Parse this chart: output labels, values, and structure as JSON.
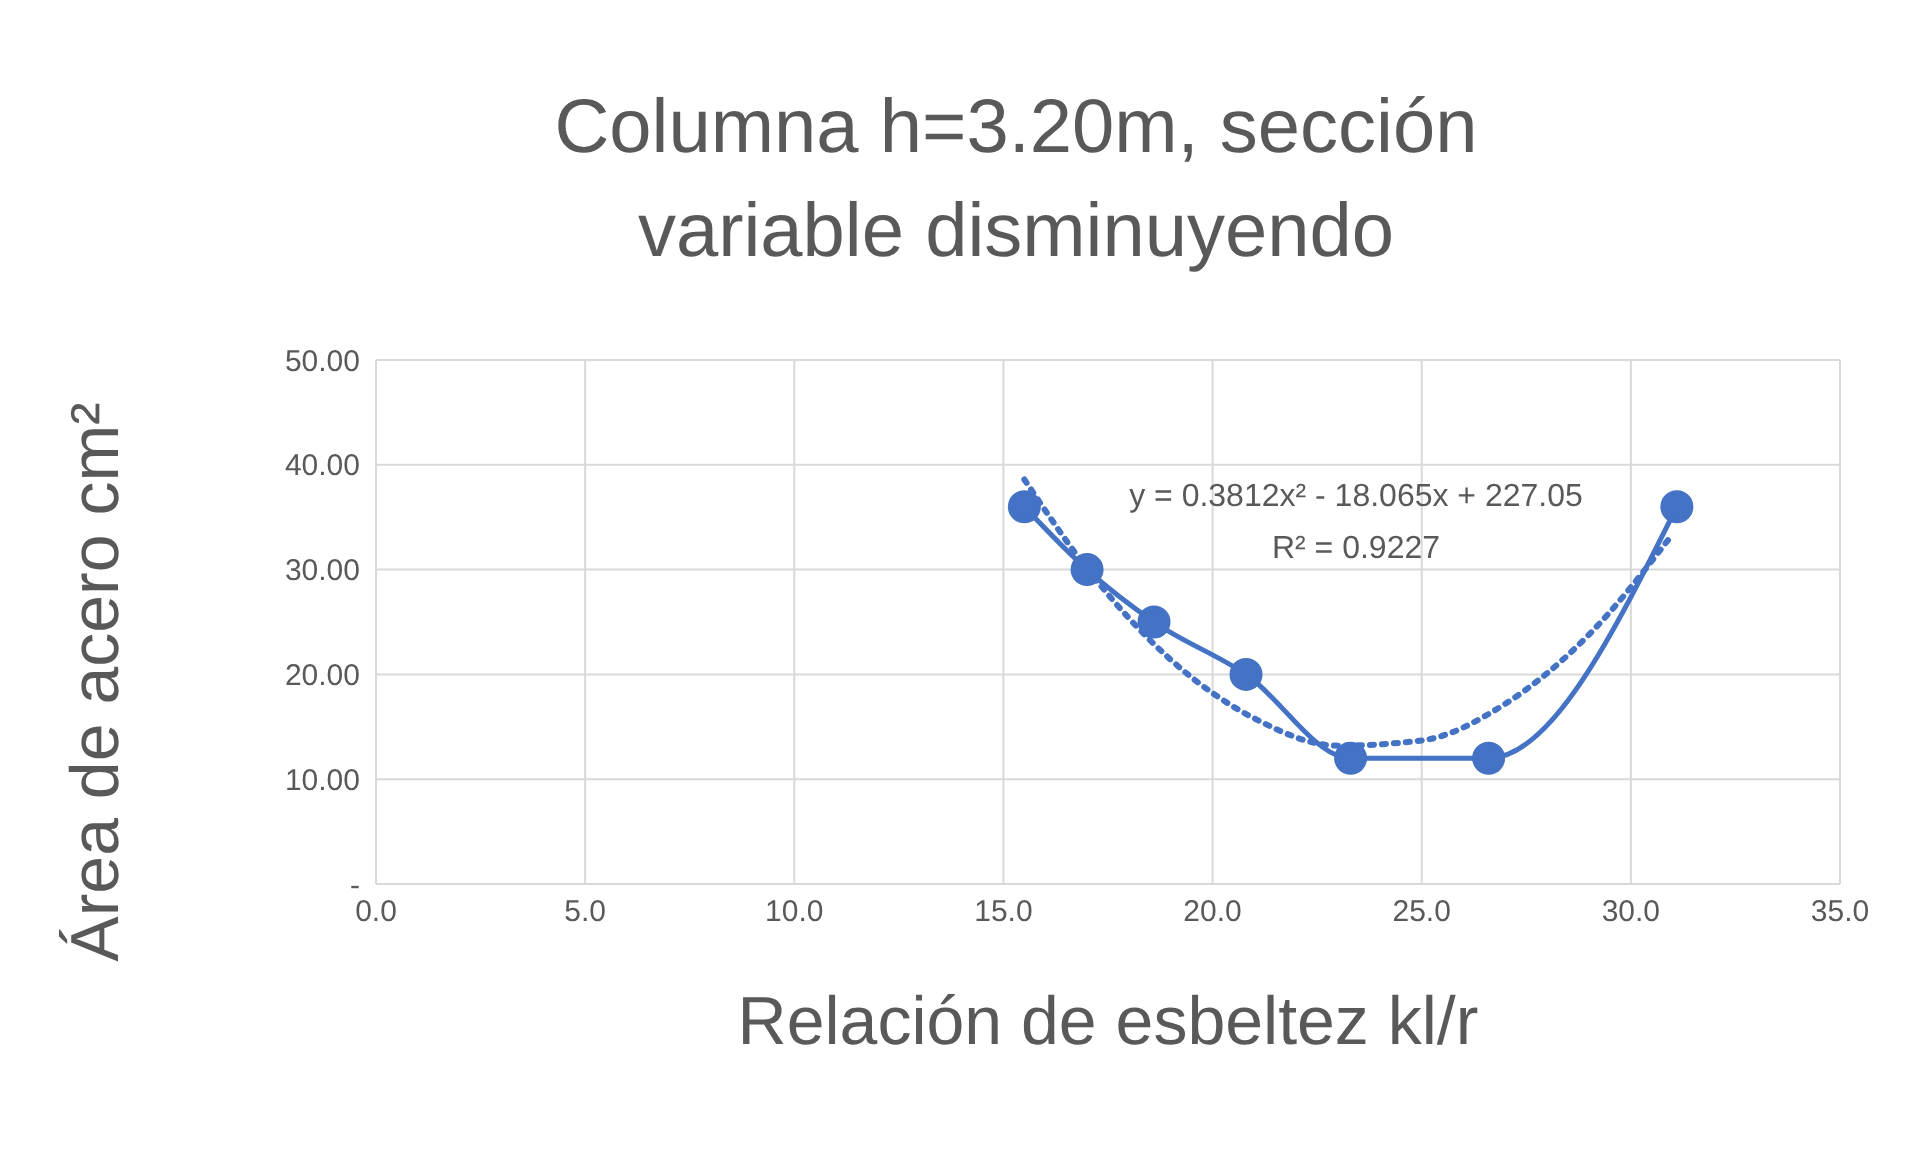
{
  "chart_data": {
    "type": "line",
    "title": "Columna h=3.20m, sección variable disminuyendo",
    "xlabel": "Relación de esbeltez kl/r",
    "ylabel": "Área de acero cm²",
    "x": [
      15.5,
      17.0,
      18.6,
      20.8,
      23.3,
      26.6,
      31.1
    ],
    "series": [
      {
        "color": "#4472c4",
        "values": [
          36,
          30,
          25,
          20,
          12,
          12,
          36
        ],
        "marker": "circle"
      },
      {
        "type": "line",
        "color": "#4472c4",
        "x": [
          15.5,
          17,
          19,
          21,
          23,
          25,
          27,
          29,
          31
        ],
        "values": [
          38.6,
          30.1,
          21.4,
          15.8,
          13.2,
          13.7,
          17.2,
          23.8,
          33.4
        ],
        "marker": "none",
        "line_style": "dotted"
      }
    ],
    "xlim": [
      0,
      35
    ],
    "xticks": [
      {
        "value": 0,
        "label": "0.0"
      },
      {
        "value": 5,
        "label": "5.0"
      },
      {
        "value": 10,
        "label": "10.0"
      },
      {
        "value": 15,
        "label": "15.0"
      },
      {
        "value": 20,
        "label": "20.0"
      },
      {
        "value": 25,
        "label": "25.0"
      },
      {
        "value": 30,
        "label": "30.0"
      },
      {
        "value": 35,
        "label": "35.0"
      }
    ],
    "ylim": [
      0,
      50
    ],
    "yticks": [
      {
        "value": 0,
        "label": "-"
      },
      {
        "value": 10,
        "label": "10.00"
      },
      {
        "value": 20,
        "label": "20.00"
      },
      {
        "value": 30,
        "label": "30.00"
      },
      {
        "value": 40,
        "label": "40.00"
      },
      {
        "value": 50,
        "label": "50.00"
      }
    ],
    "grid": true,
    "annotations": [
      "y = 0.3812x² - 18.065x + 227.05",
      "R² = 0.9227"
    ]
  }
}
